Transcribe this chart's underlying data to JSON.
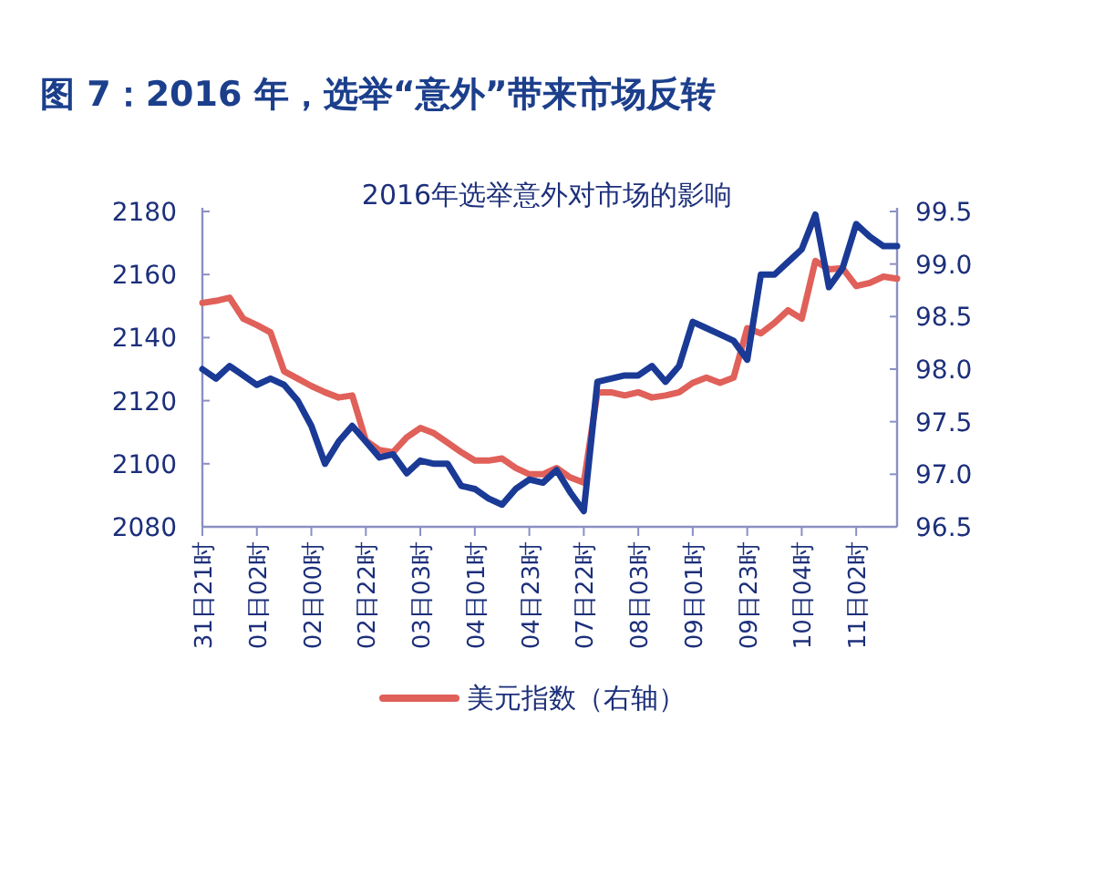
{
  "chart_data": {
    "type": "line",
    "title": "图 7：2016 年，选举“意外”带来市场反转",
    "subtitle": "2016年选举意外对市场的影响",
    "categories": [
      "31日21时",
      null,
      null,
      null,
      "01日02时",
      null,
      null,
      null,
      "02日00时",
      null,
      null,
      null,
      "02日22时",
      null,
      null,
      null,
      "03日03时",
      null,
      null,
      null,
      "04日01时",
      null,
      null,
      null,
      "04日23时",
      null,
      null,
      null,
      "07日22时",
      null,
      null,
      null,
      "08日03时",
      null,
      null,
      null,
      "09日01时",
      null,
      null,
      null,
      "09日23时",
      null,
      null,
      null,
      "10日04时",
      null,
      null,
      null,
      "11日02时",
      null,
      null,
      null
    ],
    "series": [
      {
        "color": "#1a3a96",
        "values": [
          2130,
          2127,
          2131,
          2128,
          2125,
          2127,
          2125,
          2120,
          2112,
          2100,
          2107,
          2112,
          2107,
          2102,
          2103,
          2097,
          2101,
          2100,
          2100,
          2093,
          2092,
          2089,
          2087,
          2092,
          2095,
          2094,
          2098,
          2091,
          2085,
          2126,
          2127,
          2128,
          2128,
          2131,
          2126,
          2131,
          2145,
          2143,
          2141,
          2139,
          2133,
          2160,
          2160,
          2164,
          2168,
          2179,
          2156,
          2162,
          2176,
          2172,
          2169,
          2169
        ]
      },
      {
        "name": "美元指数（右轴）",
        "color": "#e0605a",
        "axis": "y2",
        "values": [
          98.63,
          98.65,
          98.68,
          98.48,
          98.42,
          98.35,
          97.98,
          97.91,
          97.84,
          97.78,
          97.73,
          97.75,
          97.32,
          97.23,
          97.21,
          97.35,
          97.44,
          97.39,
          97.3,
          97.21,
          97.13,
          97.13,
          97.15,
          97.06,
          97.0,
          97.0,
          97.06,
          96.97,
          96.92,
          97.78,
          97.78,
          97.75,
          97.78,
          97.73,
          97.75,
          97.78,
          97.87,
          97.92,
          97.87,
          97.92,
          98.39,
          98.34,
          98.44,
          98.56,
          98.48,
          99.03,
          98.95,
          98.96,
          98.79,
          98.82,
          98.88,
          98.86
        ]
      }
    ],
    "ylim": [
      2080,
      2180
    ],
    "yticks": [
      2080,
      2100,
      2120,
      2140,
      2160,
      2180
    ],
    "y2lim": [
      96.5,
      99.5
    ],
    "y2ticks": [
      96.5,
      {
        "value": 97,
        "label": "97.0"
      },
      97.5,
      {
        "value": 98,
        "label": "98.0"
      },
      98.5,
      {
        "value": 99,
        "label": "99.0"
      },
      99.5
    ],
    "legend": "bottom"
  }
}
